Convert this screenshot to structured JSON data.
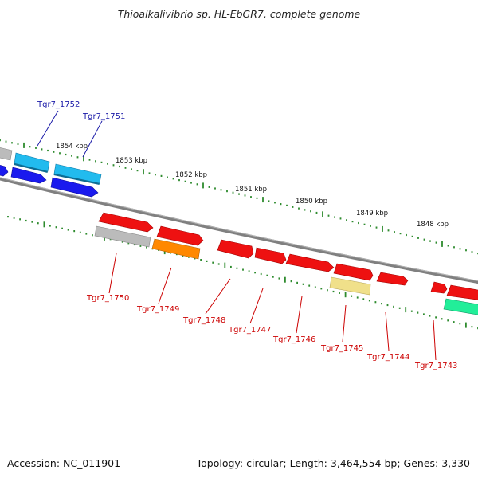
{
  "title": "Thioalkalivibrio sp. HL-EbGR7, complete genome",
  "footer": {
    "accession": "Accession: NC_011901",
    "summary": "Topology: circular; Length: 3,464,554 bp; Genes: 3,330"
  },
  "scale_labels": [
    "1854 kbp",
    "1853 kbp",
    "1852 kbp",
    "1851 kbp",
    "1850 kbp",
    "1849 kbp",
    "1848 kbp"
  ],
  "gene_labels": {
    "top": [
      "Tgr7_1752",
      "Tgr7_1751"
    ],
    "bottom": [
      "Tgr7_1750",
      "Tgr7_1749",
      "Tgr7_1748",
      "Tgr7_1747",
      "Tgr7_1746",
      "Tgr7_1745",
      "Tgr7_1744",
      "Tgr7_1743"
    ]
  },
  "colors": {
    "backbone": "#808080",
    "tick": "#2e8b2e",
    "blue_label": "#1a1aa8",
    "red_label": "#cc0000",
    "gene_red": "#ee1111",
    "gene_blue": "#1a1aee",
    "gene_cyan": "#22bbee",
    "gene_gray": "#bbbbbb",
    "gene_orange": "#ff8800",
    "gene_khaki": "#f0e08a",
    "gene_teal": "#22ee99"
  }
}
